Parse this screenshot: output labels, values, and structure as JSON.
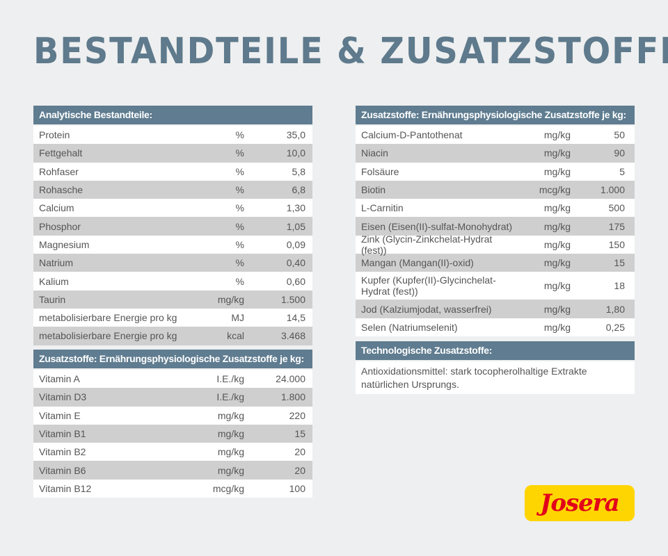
{
  "title": "Bestandteile & Zusatzstoffe",
  "analytic": {
    "header": "Analytische Bestandteile:",
    "rows": [
      {
        "name": "Protein",
        "unit": "%",
        "value": "35,0"
      },
      {
        "name": "Fettgehalt",
        "unit": "%",
        "value": "10,0"
      },
      {
        "name": "Rohfaser",
        "unit": "%",
        "value": "5,8"
      },
      {
        "name": "Rohasche",
        "unit": "%",
        "value": "6,8"
      },
      {
        "name": "Calcium",
        "unit": "%",
        "value": "1,30"
      },
      {
        "name": "Phosphor",
        "unit": "%",
        "value": "1,05"
      },
      {
        "name": "Magnesium",
        "unit": "%",
        "value": "0,09"
      },
      {
        "name": "Natrium",
        "unit": "%",
        "value": "0,40"
      },
      {
        "name": "Kalium",
        "unit": "%",
        "value": "0,60"
      },
      {
        "name": "Taurin",
        "unit": "mg/kg",
        "value": "1.500"
      },
      {
        "name": "metabolisierbare Energie pro kg",
        "unit": "MJ",
        "value": "14,5"
      },
      {
        "name": "metabolisierbare Energie pro kg",
        "unit": "kcal",
        "value": "3.468"
      }
    ]
  },
  "vitamins": {
    "header": "Zusatzstoffe: Ernährungsphysiologische Zusatzstoffe je kg:",
    "rows": [
      {
        "name": "Vitamin A",
        "unit": "I.E./kg",
        "value": "24.000"
      },
      {
        "name": "Vitamin D3",
        "unit": "I.E./kg",
        "value": "1.800"
      },
      {
        "name": "Vitamin E",
        "unit": "mg/kg",
        "value": "220"
      },
      {
        "name": "Vitamin B1",
        "unit": "mg/kg",
        "value": "15"
      },
      {
        "name": "Vitamin B2",
        "unit": "mg/kg",
        "value": "20"
      },
      {
        "name": "Vitamin B6",
        "unit": "mg/kg",
        "value": "20"
      },
      {
        "name": "Vitamin B12",
        "unit": "mcg/kg",
        "value": "100"
      }
    ]
  },
  "additives": {
    "header": "Zusatzstoffe: Ernährungsphysiologische Zusatzstoffe je kg:",
    "rows": [
      {
        "name": "Calcium-D-Pantothenat",
        "unit": "mg/kg",
        "value": "50"
      },
      {
        "name": "Niacin",
        "unit": "mg/kg",
        "value": "90"
      },
      {
        "name": "Folsäure",
        "unit": "mg/kg",
        "value": "5"
      },
      {
        "name": "Biotin",
        "unit": "mcg/kg",
        "value": "1.000"
      },
      {
        "name": "L-Carnitin",
        "unit": "mg/kg",
        "value": "500"
      },
      {
        "name": "Eisen (Eisen(II)-sulfat-Monohydrat)",
        "unit": "mg/kg",
        "value": "175"
      },
      {
        "name": "Zink (Glycin-Zinkchelat-Hydrat (fest))",
        "unit": "mg/kg",
        "value": "150"
      },
      {
        "name": "Mangan (Mangan(II)-oxid)",
        "unit": "mg/kg",
        "value": "15"
      },
      {
        "name": "Kupfer (Kupfer(II)-Glycinchelat-Hydrat (fest))",
        "unit": "mg/kg",
        "value": "18"
      },
      {
        "name": "Jod (Kalziumjodat, wasserfrei)",
        "unit": "mg/kg",
        "value": "1,80"
      },
      {
        "name": "Selen (Natriumselenit)",
        "unit": "mg/kg",
        "value": "0,25"
      }
    ]
  },
  "technological": {
    "header": "Technologische Zusatzstoffe:",
    "text": "Antioxidationsmittel: stark tocopherolhaltige Extrakte natürlichen Ursprungs."
  },
  "logo": {
    "text": "Josera",
    "colors": {
      "background": "#ffd500",
      "text": "#e2001a"
    }
  }
}
